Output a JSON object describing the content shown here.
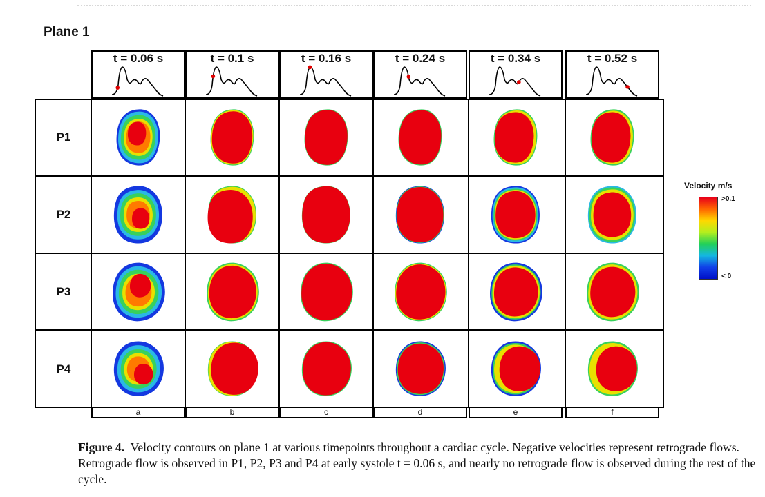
{
  "plane_title": "Plane 1",
  "timepoints": [
    {
      "time": "t = 0.06 s",
      "label": "a",
      "marker": 0.1
    },
    {
      "time": "t = 0.1 s",
      "label": "b",
      "marker": 0.22
    },
    {
      "time": "t = 0.16 s",
      "label": "c",
      "marker": 0.32
    },
    {
      "time": "t = 0.24 s",
      "label": "d",
      "marker": 0.44
    },
    {
      "time": "t = 0.34 s",
      "label": "e",
      "marker": 0.68
    },
    {
      "time": "t = 0.52 s",
      "label": "f",
      "marker": 0.86
    }
  ],
  "rows": [
    "P1",
    "P2",
    "P3",
    "P4"
  ],
  "legend": {
    "title": "Velocity m/s",
    "max_label": ">0.1",
    "min_label": "< 0",
    "colors": [
      "#e8001a",
      "#ff6600",
      "#ffd800",
      "#b4ee1e",
      "#22d058",
      "#14b8e0",
      "#1040e8",
      "#0010c8"
    ]
  },
  "colors": {
    "red": "#e8000f",
    "orange": "#ff7a00",
    "yellow": "#e8e000",
    "green": "#38d15c",
    "cyan": "#2ab8e6",
    "blue": "#1438e0",
    "marker": "#e00000"
  },
  "caption": {
    "label": "Figure 4.",
    "text": "Velocity contours on plane 1 at various timepoints throughout a cardiac cycle. Negative velocities represent retrograde flows. Retrograde flow is observed in P1, P2, P3 and P4 at early systole t = 0.06 s, and nearly no retrograde flow is observed during the rest of the cycle."
  }
}
